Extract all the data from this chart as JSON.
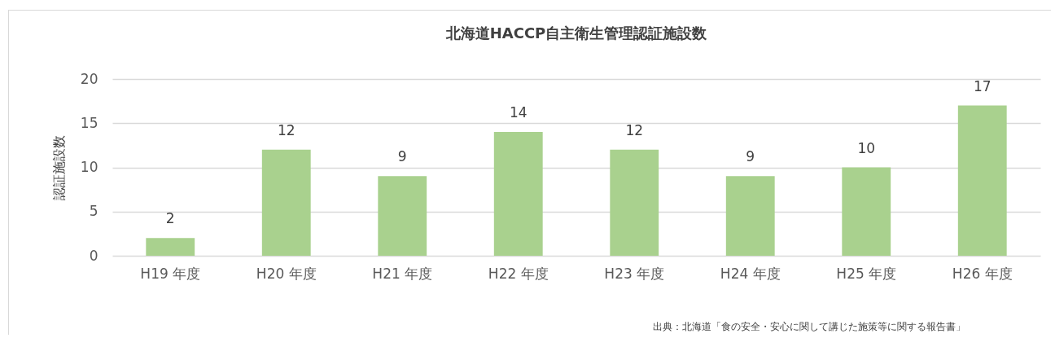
{
  "chart_data": {
    "type": "bar",
    "title": "北海道HACCP自主衛生管理認証施設数",
    "ylabel": "認証施設数",
    "categories": [
      "H19 年度",
      "H20 年度",
      "H21 年度",
      "H22 年度",
      "H23 年度",
      "H24 年度",
      "H25 年度",
      "H26 年度"
    ],
    "values": [
      2,
      12,
      9,
      14,
      12,
      9,
      10,
      17
    ],
    "color": "#a9d18e",
    "ylim": [
      0,
      20
    ],
    "yticks": [
      0,
      5,
      10,
      15,
      20
    ],
    "grid": "y",
    "data_labels": true,
    "annotations": [
      "出典：北海道「食の安全・安心に関して講じた施策等に関する報告書」"
    ]
  }
}
